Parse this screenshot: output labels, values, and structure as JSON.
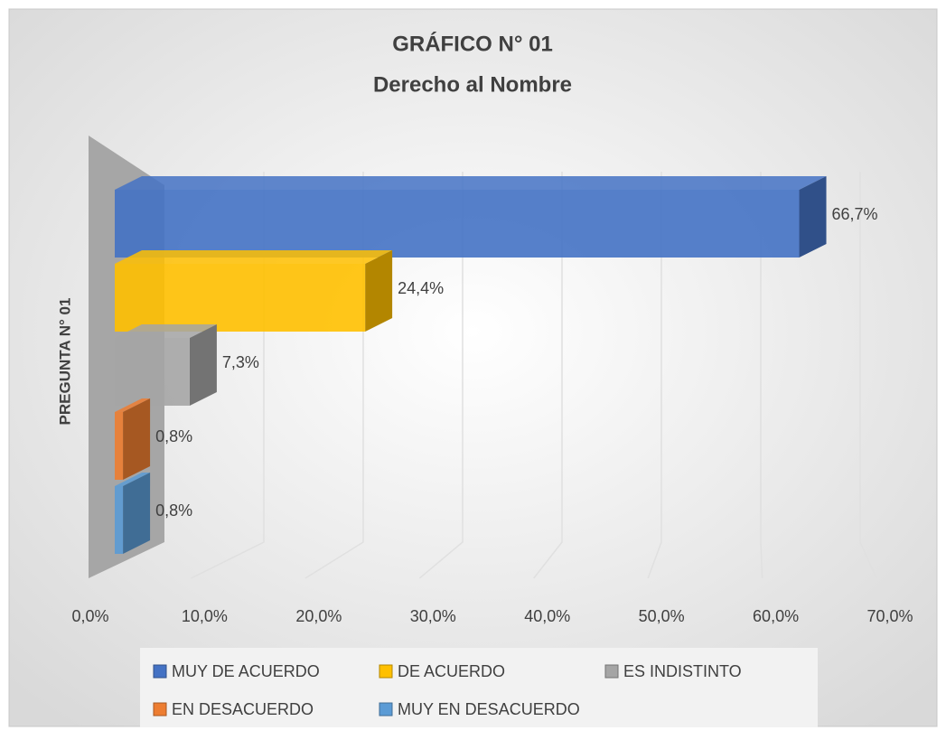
{
  "chart_data": {
    "type": "bar",
    "orientation": "horizontal",
    "three_d": true,
    "title": "GRÁFICO N° 01",
    "subtitle": "Derecho al Nombre",
    "categories": [
      "PREGUNTA N° 01"
    ],
    "series": [
      {
        "name": "MUY DE ACUERDO",
        "color": "#4472c4",
        "values": [
          66.7
        ],
        "value_labels": [
          "66,7%"
        ]
      },
      {
        "name": "DE ACUERDO",
        "color": "#ffc000",
        "values": [
          24.4
        ],
        "value_labels": [
          "24,4%"
        ]
      },
      {
        "name": "ES INDISTINTO",
        "color": "#a5a5a5",
        "values": [
          7.3
        ],
        "value_labels": [
          "7,3%"
        ]
      },
      {
        "name": "EN DESACUERDO",
        "color": "#ed7d31",
        "values": [
          0.8
        ],
        "value_labels": [
          "0,8%"
        ]
      },
      {
        "name": "MUY EN DESACUERDO",
        "color": "#5b9bd5",
        "values": [
          0.8
        ],
        "value_labels": [
          "0,8%"
        ]
      }
    ],
    "xlim": [
      0,
      70
    ],
    "xticks": [
      {
        "value": 0,
        "label": "0,0%"
      },
      {
        "value": 10,
        "label": "10,0%"
      },
      {
        "value": 20,
        "label": "20,0%"
      },
      {
        "value": 30,
        "label": "30,0%"
      },
      {
        "value": 40,
        "label": "40,0%"
      },
      {
        "value": 50,
        "label": "50,0%"
      },
      {
        "value": 60,
        "label": "60,0%"
      },
      {
        "value": 70,
        "label": "70,0%"
      }
    ],
    "grid": true,
    "legend": "bottom"
  }
}
